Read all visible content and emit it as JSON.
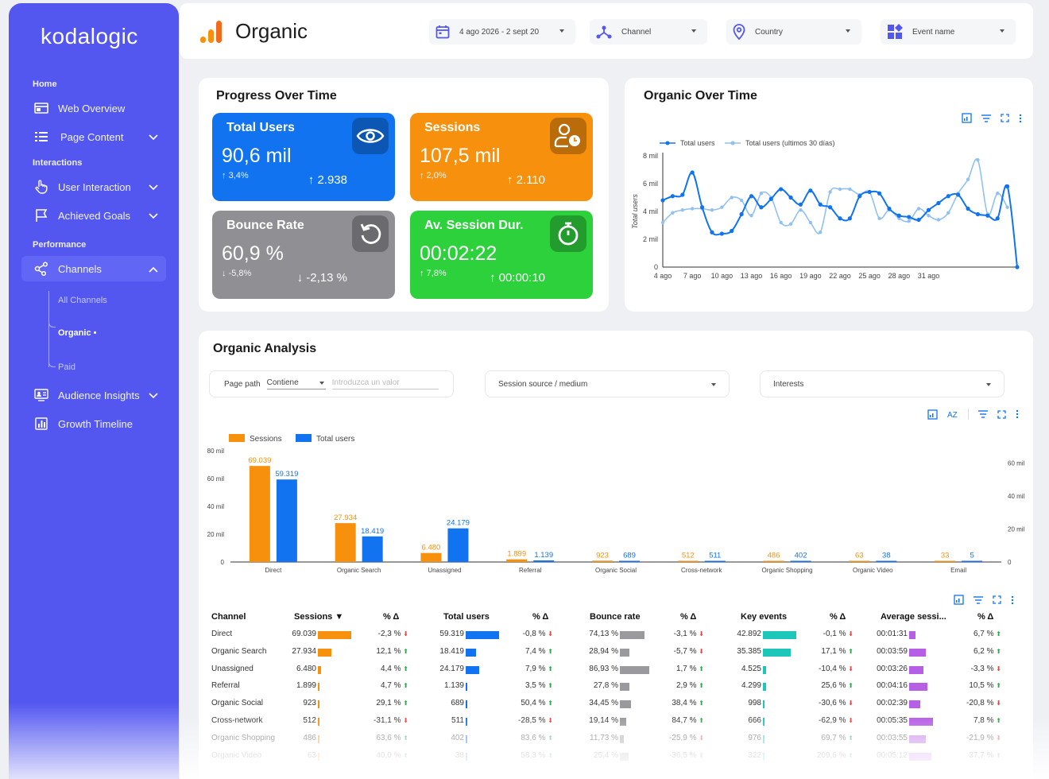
{
  "brand": "kodalogic",
  "sidebar": {
    "sections": {
      "home": "Home",
      "interactions": "Interactions",
      "performance": "Performance"
    },
    "items": [
      {
        "label": "Web Overview",
        "icon": "monitor-icon"
      },
      {
        "label": "Page Content",
        "icon": "list-icon"
      },
      {
        "label": "User Interaction",
        "icon": "hand-pointer-icon"
      },
      {
        "label": "Achieved Goals",
        "icon": "flag-icon"
      },
      {
        "label": "Channels",
        "icon": "share-nodes-icon"
      },
      {
        "label": "Audience Insights",
        "icon": "users-screen-icon"
      },
      {
        "label": "Growth Timeline",
        "icon": "bar-chart-icon"
      }
    ],
    "channels_sub": [
      "All Channels",
      "Organic",
      "Paid"
    ],
    "active_marker": "•"
  },
  "header": {
    "title": "Organic",
    "filters": {
      "date": "4 ago 2026 - 2 sept 20",
      "channel": "Channel",
      "country": "Country",
      "event": "Event name"
    }
  },
  "progress": {
    "title": "Progress Over Time",
    "kpis": [
      {
        "title": "Total Users",
        "value": "90,6 mil",
        "pct": "3,4%",
        "pct_dir": "↑",
        "delta": "2.938",
        "delta_dir": "↑",
        "color": "#1173f0",
        "icon": "eye-icon"
      },
      {
        "title": "Sessions",
        "value": "107,5 mil",
        "pct": "2,0%",
        "pct_dir": "↑",
        "delta": "2.110",
        "delta_dir": "↑",
        "color": "#f7900c",
        "icon": "user-clock-icon"
      },
      {
        "title": "Bounce Rate",
        "value": "60,9 %",
        "pct": "-5,8%",
        "pct_dir": "↓",
        "delta": "-2,13 %",
        "delta_dir": "↓",
        "color": "#8f8f94",
        "icon": "undo-icon"
      },
      {
        "title": "Av. Session Dur.",
        "value": "00:02:22",
        "pct": "7,8%",
        "pct_dir": "↑",
        "delta": "00:00:10",
        "delta_dir": "↑",
        "color": "#2cd13c",
        "icon": "stopwatch-icon"
      }
    ]
  },
  "organic_over_time": {
    "title": "Organic Over Time",
    "chart_data": {
      "type": "line",
      "ylabel": "Total users",
      "ylim": [
        0,
        8000
      ],
      "yticks": [
        "0",
        "2 mil",
        "4 mil",
        "6 mil",
        "8 mil"
      ],
      "yticks_values": [
        0,
        2000,
        4000,
        6000,
        8000
      ],
      "xticks": [
        "4 ago",
        "7 ago",
        "10 ago",
        "13 ago",
        "16 ago",
        "19 ago",
        "22 ago",
        "25 ago",
        "28 ago",
        "31 ago"
      ],
      "xticks_index": [
        0,
        3,
        6,
        9,
        12,
        15,
        18,
        21,
        24,
        27
      ],
      "legend_position": "top-left",
      "series": [
        {
          "name": "Total users",
          "color": "#1173f0",
          "values": [
            4800,
            5100,
            5200,
            6800,
            4300,
            2500,
            2400,
            2600,
            3800,
            5100,
            4300,
            4900,
            5600,
            5000,
            4500,
            5500,
            4500,
            4300,
            3500,
            3500,
            5100,
            5400,
            5300,
            4200,
            3700,
            3600,
            3400,
            4100,
            4600,
            5100,
            5200,
            4200,
            3800,
            3700,
            3500,
            5800,
            0
          ]
        },
        {
          "name": "Total users (ultimos 30 días)",
          "color": "#90c1f2",
          "values": [
            3200,
            3900,
            4100,
            4200,
            4200,
            4100,
            4300,
            5000,
            4800,
            3700,
            5300,
            5000,
            3200,
            3100,
            4100,
            3200,
            2500,
            5400,
            5600,
            5600,
            5200,
            5400,
            3500,
            4100,
            3500,
            3300,
            4200,
            3700,
            3400,
            3900,
            5300,
            6300,
            7700,
            3800,
            5300,
            4300
          ]
        }
      ]
    }
  },
  "analysis": {
    "title": "Organic Analysis",
    "filters": {
      "page_path": "Page path",
      "contains": "Contiene",
      "placeholder": "Introduzca un valor",
      "source": "Session source / medium",
      "interests": "Interests"
    },
    "chart_data": {
      "type": "bar",
      "categories": [
        "Direct",
        "Organic Search",
        "Unassigned",
        "Referral",
        "Organic Social",
        "Cross-network",
        "Organic Shopping",
        "Organic Video",
        "Email"
      ],
      "series": [
        {
          "name": "Sessions",
          "color": "#f7900c",
          "values": [
            69039,
            27934,
            6480,
            1899,
            923,
            512,
            486,
            63,
            33
          ],
          "labels": [
            "69.039",
            "27.934",
            "6.480",
            "1.899",
            "923",
            "512",
            "486",
            "63",
            "33"
          ]
        },
        {
          "name": "Total users",
          "color": "#1173f0",
          "values": [
            59319,
            18419,
            24179,
            1139,
            689,
            511,
            402,
            38,
            5
          ],
          "labels": [
            "59.319",
            "18.419",
            "24.179",
            "1.139",
            "689",
            "511",
            "402",
            "38",
            "5"
          ]
        }
      ],
      "ylim": [
        0,
        80000
      ],
      "yticks": [
        "0",
        "20 mil",
        "40 mil",
        "60 mil",
        "80 mil"
      ],
      "yticks_values": [
        0,
        20000,
        40000,
        60000,
        80000
      ],
      "y2ticks": [
        "0",
        "20 mil",
        "40 mil",
        "60 mil"
      ],
      "legend_position": "top-left"
    },
    "table": {
      "headers": [
        "Channel",
        "Sessions ▼",
        "% Δ",
        "Total users",
        "% Δ",
        "Bounce rate",
        "% Δ",
        "Key events",
        "% Δ",
        "Average sessi...",
        "% Δ"
      ],
      "rows": [
        {
          "channel": "Direct",
          "sessions": "69.039",
          "s_pct": "-2,3 %",
          "s_dir": "dn",
          "users": "59.319",
          "u_pct": "-0,8 %",
          "u_dir": "dn",
          "bounce": "74,13 %",
          "b_pct": "-3,1 %",
          "b_dir": "dn",
          "key": "42.892",
          "k_pct": "-0,1 %",
          "k_dir": "dn",
          "avg": "00:01:31",
          "a_pct": "6,7 %",
          "a_dir": "up",
          "s_v": 69039,
          "u_v": 59319,
          "b_v": 74.13,
          "k_v": 42892,
          "a_v": 91
        },
        {
          "channel": "Organic Search",
          "sessions": "27.934",
          "s_pct": "12,1 %",
          "s_dir": "up",
          "users": "18.419",
          "u_pct": "7,4 %",
          "u_dir": "up",
          "bounce": "28,94 %",
          "b_pct": "-5,7 %",
          "b_dir": "dn",
          "key": "35.385",
          "k_pct": "17,1 %",
          "k_dir": "up",
          "avg": "00:03:59",
          "a_pct": "6,2 %",
          "a_dir": "up",
          "s_v": 27934,
          "u_v": 18419,
          "b_v": 28.94,
          "k_v": 35385,
          "a_v": 239
        },
        {
          "channel": "Unassigned",
          "sessions": "6.480",
          "s_pct": "4,4 %",
          "s_dir": "up",
          "users": "24.179",
          "u_pct": "7,9 %",
          "u_dir": "up",
          "bounce": "86,93 %",
          "b_pct": "1,7 %",
          "b_dir": "up",
          "key": "4.525",
          "k_pct": "-10,4 %",
          "k_dir": "dn",
          "avg": "00:03:26",
          "a_pct": "-3,3 %",
          "a_dir": "dn",
          "s_v": 6480,
          "u_v": 24179,
          "b_v": 86.93,
          "k_v": 4525,
          "a_v": 206
        },
        {
          "channel": "Referral",
          "sessions": "1.899",
          "s_pct": "4,7 %",
          "s_dir": "up",
          "users": "1.139",
          "u_pct": "3,5 %",
          "u_dir": "up",
          "bounce": "27,8 %",
          "b_pct": "2,9 %",
          "b_dir": "up",
          "key": "4.299",
          "k_pct": "25,6 %",
          "k_dir": "up",
          "avg": "00:04:16",
          "a_pct": "10,5 %",
          "a_dir": "up",
          "s_v": 1899,
          "u_v": 1139,
          "b_v": 27.8,
          "k_v": 4299,
          "a_v": 256
        },
        {
          "channel": "Organic Social",
          "sessions": "923",
          "s_pct": "29,1 %",
          "s_dir": "up",
          "users": "689",
          "u_pct": "50,4 %",
          "u_dir": "up",
          "bounce": "34,45 %",
          "b_pct": "38,4 %",
          "b_dir": "up",
          "key": "998",
          "k_pct": "-30,6 %",
          "k_dir": "dn",
          "avg": "00:02:39",
          "a_pct": "-20,8 %",
          "a_dir": "dn",
          "s_v": 923,
          "u_v": 689,
          "b_v": 34.45,
          "k_v": 998,
          "a_v": 159
        },
        {
          "channel": "Cross-network",
          "sessions": "512",
          "s_pct": "-31,1 %",
          "s_dir": "dn",
          "users": "511",
          "u_pct": "-28,5 %",
          "u_dir": "dn",
          "bounce": "19,14 %",
          "b_pct": "84,7 %",
          "b_dir": "up",
          "key": "666",
          "k_pct": "-62,9 %",
          "k_dir": "dn",
          "avg": "00:05:35",
          "a_pct": "7,8 %",
          "a_dir": "up",
          "s_v": 512,
          "u_v": 511,
          "b_v": 19.14,
          "k_v": 666,
          "a_v": 335
        },
        {
          "channel": "Organic Shopping",
          "sessions": "486",
          "s_pct": "63,6 %",
          "s_dir": "up",
          "users": "402",
          "u_pct": "83,6 %",
          "u_dir": "up",
          "bounce": "11,73 %",
          "b_pct": "-25,9 %",
          "b_dir": "dn",
          "key": "976",
          "k_pct": "69,7 %",
          "k_dir": "up",
          "avg": "00:03:55",
          "a_pct": "-21,9 %",
          "a_dir": "dn",
          "s_v": 486,
          "u_v": 402,
          "b_v": 11.73,
          "k_v": 976,
          "a_v": 235
        },
        {
          "channel": "Organic Video",
          "sessions": "63",
          "s_pct": "40,0 %",
          "s_dir": "up",
          "users": "38",
          "u_pct": "58,3 %",
          "u_dir": "up",
          "bounce": "25,4 %",
          "b_pct": "-36,5 %",
          "b_dir": "dn",
          "key": "322",
          "k_pct": "209,6 %",
          "k_dir": "up",
          "avg": "00:05:12",
          "a_pct": "37,7 %",
          "a_dir": "up",
          "s_v": 63,
          "u_v": 38,
          "b_v": 25.4,
          "k_v": 322,
          "a_v": 312
        }
      ]
    }
  }
}
